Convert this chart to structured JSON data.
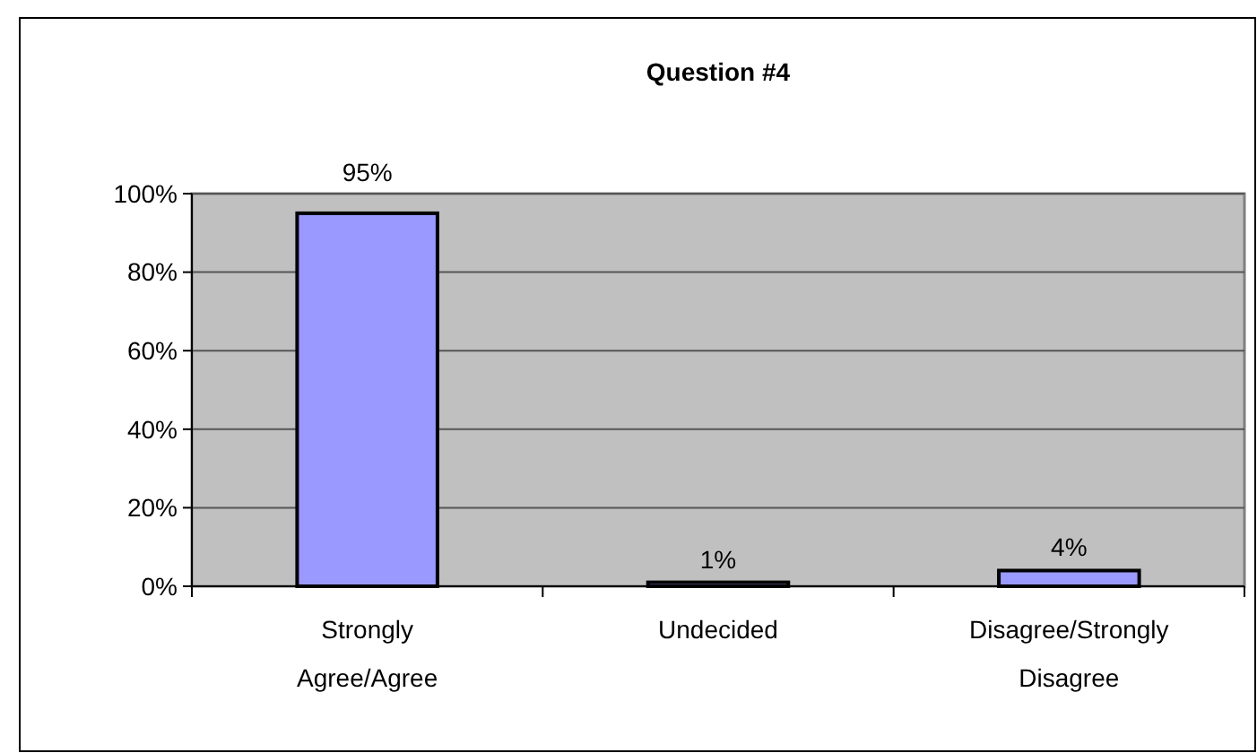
{
  "chart_data": {
    "type": "bar",
    "title": "Question #4",
    "categories": [
      "Strongly Agree/Agree",
      "Undecided",
      "Disagree/Strongly Disagree"
    ],
    "values": [
      95,
      1,
      4
    ],
    "color": "#9999ff",
    "value_labels": [
      "95%",
      "1%",
      "4%"
    ],
    "ylim": [
      0,
      100
    ],
    "yticks": [
      {
        "value": 0,
        "label": "0%"
      },
      {
        "value": 20,
        "label": "20%"
      },
      {
        "value": 40,
        "label": "40%"
      },
      {
        "value": 60,
        "label": "60%"
      },
      {
        "value": 80,
        "label": "80%"
      },
      {
        "value": 100,
        "label": "100%"
      }
    ],
    "grid": "y"
  }
}
